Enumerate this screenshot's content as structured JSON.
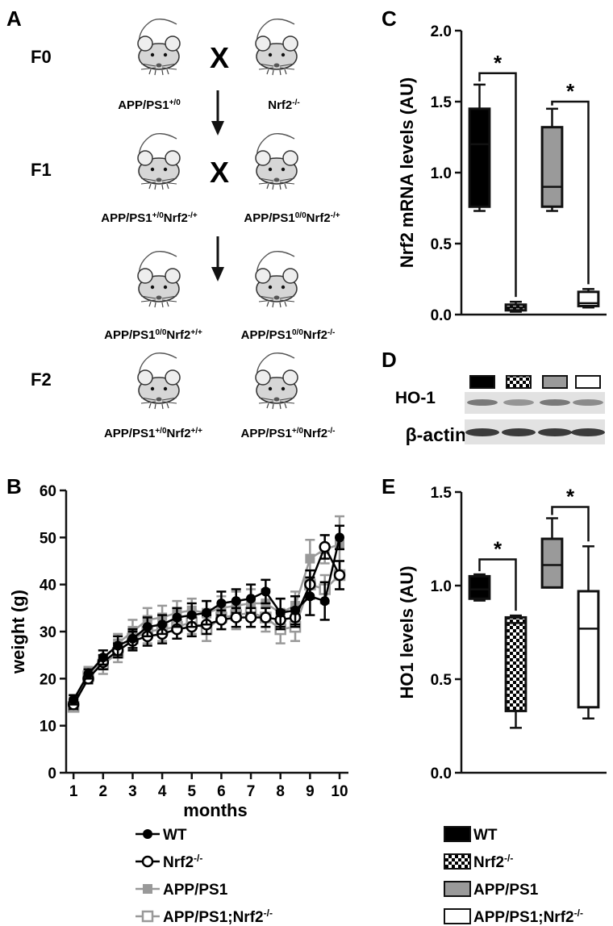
{
  "panels": {
    "A": {
      "label": "A",
      "generations": [
        "F0",
        "F1",
        "F2"
      ],
      "cross_symbol": "X",
      "mouse_icon": "mouse-icon",
      "arrow_icon": "down-arrow-icon",
      "genotypes": {
        "f0_left": {
          "base": "APP/PS1",
          "sup1": "+/0",
          "mid": "",
          "sup2": ""
        },
        "f0_right": {
          "base": "Nrf2",
          "sup1": "-/-",
          "mid": "",
          "sup2": ""
        },
        "f1_left": {
          "base": "APP/PS1",
          "sup1": "+/0",
          "mid": "Nrf2",
          "sup2": "-/+"
        },
        "f1_right": {
          "base": "APP/PS1",
          "sup1": "0/0",
          "mid": "Nrf2",
          "sup2": "-/+"
        },
        "f2a_left": {
          "base": "APP/PS1",
          "sup1": "0/0",
          "mid": "Nrf2",
          "sup2": "+/+"
        },
        "f2a_right": {
          "base": "APP/PS1",
          "sup1": "0/0",
          "mid": "Nrf2",
          "sup2": "-/-"
        },
        "f2b_left": {
          "base": "APP/PS1",
          "sup1": "+/0",
          "mid": "Nrf2",
          "sup2": "+/+"
        },
        "f2b_right": {
          "base": "APP/PS1",
          "sup1": "+/0",
          "mid": "Nrf2",
          "sup2": "-/-"
        }
      }
    },
    "B": {
      "label": "B"
    },
    "C": {
      "label": "C"
    },
    "D": {
      "label": "D",
      "rows": [
        "HO-1",
        "β-actin"
      ],
      "lane_colors": [
        "#000000",
        "checker",
        "#9a9a9a",
        "#ffffff"
      ],
      "band_intensity": {
        "HO-1": [
          0.55,
          0.4,
          0.55,
          0.45
        ],
        "β-actin": [
          0.8,
          0.8,
          0.8,
          0.8
        ]
      }
    },
    "E": {
      "label": "E"
    }
  },
  "significance_marker": "*",
  "legend_left": {
    "entries": [
      {
        "text": "WT",
        "sup": "",
        "color": "#000000",
        "marker": "filled-circle"
      },
      {
        "text": "Nrf2",
        "sup": "-/-",
        "color": "#000000",
        "marker": "open-circle"
      },
      {
        "text": "APP/PS1",
        "sup": "",
        "color": "#999999",
        "marker": "filled-square"
      },
      {
        "text": "APP/PS1;Nrf2",
        "sup": "-/-",
        "color": "#999999",
        "marker": "open-square"
      }
    ]
  },
  "legend_right": {
    "entries": [
      {
        "text": "WT",
        "sup": "",
        "fill": "#000000"
      },
      {
        "text": "Nrf2",
        "sup": "-/-",
        "fill": "checker"
      },
      {
        "text": "APP/PS1",
        "sup": "",
        "fill": "#9a9a9a"
      },
      {
        "text": "APP/PS1;Nrf2",
        "sup": "-/-",
        "fill": "#ffffff"
      }
    ]
  },
  "chart_data": [
    {
      "id": "B",
      "type": "line",
      "xlabel": "months",
      "ylabel": "weight (g)",
      "xlim": [
        0.75,
        10.3
      ],
      "ylim": [
        0,
        60
      ],
      "xticks": [
        1,
        2,
        3,
        4,
        5,
        6,
        7,
        8,
        9,
        10
      ],
      "yticks": [
        0,
        10,
        20,
        30,
        40,
        50,
        60
      ],
      "x": [
        1,
        1.5,
        2,
        2.5,
        3,
        3.5,
        4,
        4.5,
        5,
        5.5,
        6,
        6.5,
        7,
        7.5,
        8,
        8.5,
        9,
        9.5,
        10
      ],
      "series": [
        {
          "name": "WT",
          "color": "#000000",
          "marker": "filled-circle",
          "values": [
            15.5,
            21,
            24.5,
            27,
            28.5,
            31,
            31.5,
            33,
            33.5,
            34,
            36,
            36.5,
            37,
            38.5,
            34,
            34.5,
            37.5,
            36.5,
            50
          ],
          "errors": [
            1,
            1,
            1.5,
            2,
            2,
            2,
            2,
            2,
            2.5,
            2.5,
            2.5,
            2.5,
            3,
            2.5,
            3,
            3,
            4,
            4,
            2.5
          ]
        },
        {
          "name": "Nrf2-/-",
          "color": "#000000",
          "marker": "open-circle",
          "values": [
            14.5,
            20,
            23.5,
            26,
            28,
            29,
            29.5,
            30.5,
            31,
            31.5,
            32.5,
            33,
            33,
            33,
            32.5,
            33,
            40,
            48,
            42
          ],
          "errors": [
            1,
            1,
            1.5,
            1.5,
            2,
            2,
            2,
            2,
            2,
            2,
            2,
            2,
            2,
            2,
            2,
            2,
            3,
            2.5,
            3
          ]
        },
        {
          "name": "APP/PS1",
          "color": "#999999",
          "marker": "filled-square",
          "values": [
            15,
            21,
            24,
            27.5,
            30,
            32.5,
            33,
            34,
            34.5,
            34,
            35,
            35.5,
            36,
            36,
            34,
            35.5,
            45.5,
            47.5,
            48.5
          ],
          "errors": [
            1,
            1.5,
            2,
            2,
            2.5,
            2.5,
            2.5,
            2.5,
            2.5,
            2.5,
            2.5,
            3,
            3,
            3,
            3,
            3,
            4,
            3,
            6
          ]
        },
        {
          "name": "APP/PS1;Nrf2-/-",
          "color": "#999999",
          "marker": "open-square",
          "values": [
            14,
            20.5,
            23,
            25.5,
            28.5,
            30,
            30.5,
            31,
            32,
            30.5,
            33,
            33.5,
            34,
            33,
            30.5,
            31,
            40,
            39,
            42
          ],
          "errors": [
            1,
            1.5,
            2,
            2,
            2.5,
            2.5,
            2.5,
            2.5,
            2.5,
            2.5,
            2.5,
            3,
            3,
            3,
            3,
            3,
            3,
            3,
            3
          ]
        }
      ]
    },
    {
      "id": "C",
      "type": "box",
      "ylabel": "Nrf2 mRNA levels (AU)",
      "ylim": [
        0,
        2.0
      ],
      "yticks": [
        0.0,
        0.5,
        1.0,
        1.5,
        2.0
      ],
      "groups": [
        {
          "name": "WT",
          "fill": "#000000",
          "min": 0.73,
          "q1": 0.76,
          "median": 1.2,
          "q3": 1.45,
          "max": 1.62
        },
        {
          "name": "Nrf2-/-",
          "fill": "checker",
          "min": 0.02,
          "q1": 0.03,
          "median": 0.05,
          "q3": 0.07,
          "max": 0.09
        },
        {
          "name": "APP/PS1",
          "fill": "#9a9a9a",
          "min": 0.73,
          "q1": 0.76,
          "median": 0.9,
          "q3": 1.32,
          "max": 1.45
        },
        {
          "name": "APP/PS1;Nrf2-/-",
          "fill": "#ffffff",
          "min": 0.05,
          "q1": 0.06,
          "median": 0.08,
          "q3": 0.16,
          "max": 0.18
        }
      ],
      "significance": [
        {
          "from": 0,
          "to": 1,
          "y": 1.7,
          "label": "*"
        },
        {
          "from": 2,
          "to": 3,
          "y": 1.5,
          "label": "*"
        }
      ]
    },
    {
      "id": "E",
      "type": "box",
      "ylabel": "HO1 levels (AU)",
      "ylim": [
        0,
        1.5
      ],
      "yticks": [
        0.0,
        0.5,
        1.0,
        1.5
      ],
      "groups": [
        {
          "name": "WT",
          "fill": "#000000",
          "min": 0.92,
          "q1": 0.93,
          "median": 0.98,
          "q3": 1.05,
          "max": 1.06
        },
        {
          "name": "Nrf2-/-",
          "fill": "checker",
          "min": 0.24,
          "q1": 0.33,
          "median": 0.8,
          "q3": 0.83,
          "max": 0.84
        },
        {
          "name": "APP/PS1",
          "fill": "#9a9a9a",
          "min": 0.99,
          "q1": 0.99,
          "median": 1.11,
          "q3": 1.25,
          "max": 1.36
        },
        {
          "name": "APP/PS1;Nrf2-/-",
          "fill": "#ffffff",
          "min": 0.29,
          "q1": 0.35,
          "median": 0.77,
          "q3": 0.97,
          "max": 1.21
        }
      ],
      "significance": [
        {
          "from": 0,
          "to": 1,
          "y": 1.14,
          "label": "*"
        },
        {
          "from": 2,
          "to": 3,
          "y": 1.42,
          "label": "*"
        }
      ]
    }
  ]
}
